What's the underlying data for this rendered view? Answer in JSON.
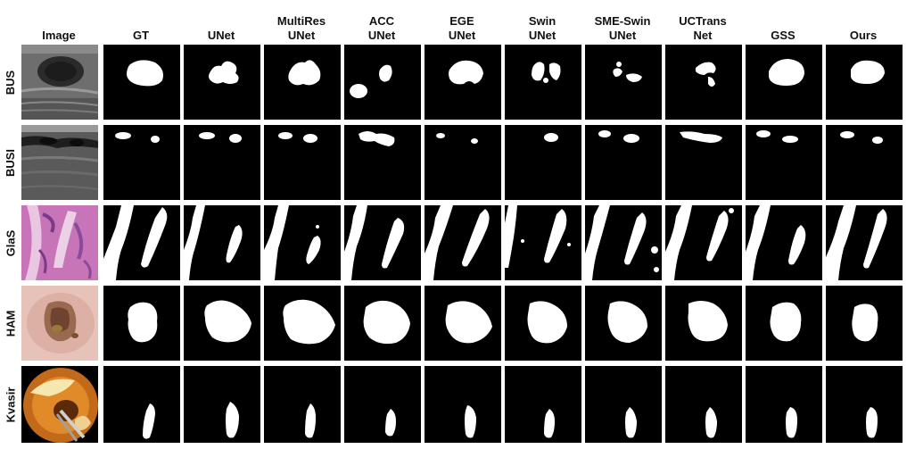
{
  "columns": [
    {
      "key": "image",
      "line1": "",
      "line2": "Image"
    },
    {
      "key": "gt",
      "line1": "",
      "line2": "GT"
    },
    {
      "key": "unet",
      "line1": "",
      "line2": "UNet"
    },
    {
      "key": "multires",
      "line1": "MultiRes",
      "line2": "UNet"
    },
    {
      "key": "acc",
      "line1": "ACC",
      "line2": "UNet"
    },
    {
      "key": "ege",
      "line1": "EGE",
      "line2": "UNet"
    },
    {
      "key": "swin",
      "line1": "Swin",
      "line2": "UNet"
    },
    {
      "key": "smeswin",
      "line1": "SME-Swin",
      "line2": "UNet"
    },
    {
      "key": "uctrans",
      "line1": "UCTrans",
      "line2": "Net"
    },
    {
      "key": "gss",
      "line1": "",
      "line2": "GSS"
    },
    {
      "key": "ours",
      "line1": "",
      "line2": "Ours"
    }
  ],
  "rows": [
    {
      "key": "bus",
      "label": "BUS"
    },
    {
      "key": "busi",
      "label": "BUSI"
    },
    {
      "key": "glas",
      "label": "GlaS"
    },
    {
      "key": "ham",
      "label": "HAM"
    },
    {
      "key": "kvasir",
      "label": "Kvasir"
    }
  ],
  "colors": {
    "background": "#000000",
    "mask": "#ffffff",
    "text": "#111111"
  }
}
